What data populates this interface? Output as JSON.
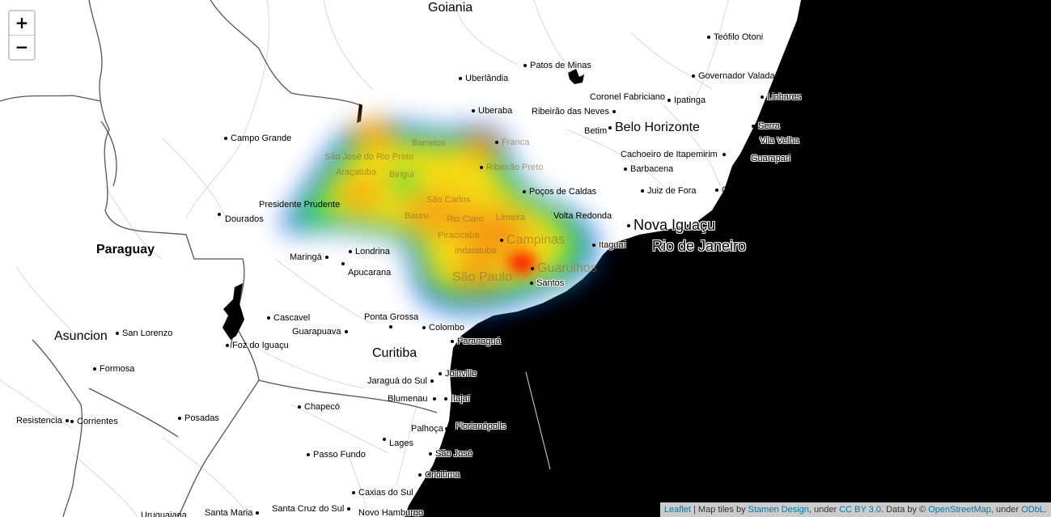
{
  "zoom": {
    "in_label": "+",
    "out_label": "−"
  },
  "attribution": {
    "leaflet": "Leaflet",
    "sep1": " | Map tiles by ",
    "stamen": "Stamen Design",
    "sep2": ", under ",
    "ccby": "CC BY 3.0",
    "sep3": ". Data by © ",
    "osm": "OpenStreetMap",
    "sep4": ", under ",
    "odbl": "ODbL",
    "end": "."
  },
  "countries": [
    "Paraguay"
  ],
  "cities": [
    "Goiania",
    "Teófilo Otoni",
    "Patos de Minas",
    "Uberlândia",
    "Governador Valadares",
    "Coronel Fabriciano",
    "Ipatinga",
    "Linhares",
    "Uberaba",
    "Ribeirão das Neves",
    "Betim",
    "Belo Horizonte",
    "Serra",
    "Vila Velha",
    "Guarapari",
    "Campo Grande",
    "Barretos",
    "Franca",
    "Cachoeiro de Itapemirim",
    "São José do Rio Preto",
    "Barbacena",
    "Araçatuba",
    "Birigui",
    "Ribeirão Preto",
    "Poços de Caldas",
    "Juiz de Fora",
    "Campos",
    "São Carlos",
    "Presidente Prudente",
    "Dourados",
    "Bauru",
    "Rio Claro",
    "Limeira",
    "Volta Redonda",
    "Nova Iguaçu",
    "Piracicaba",
    "Campinas",
    "Itaguaí",
    "Rio de Janeiro",
    "Paraguay",
    "Maringá",
    "Londrina",
    "Indaiatuba",
    "Guarulhos",
    "Apucarana",
    "São Paulo",
    "Santos",
    "Cascavel",
    "Ponta Grossa",
    "Asuncion",
    "San Lorenzo",
    "Guarapuava",
    "Colombo",
    "Paranaguá",
    "Foz do Iguaçu",
    "Curitiba",
    "Formosa",
    "Jaraguá do Sul",
    "Joinville",
    "Blumenau",
    "Itajaí",
    "Resistencia",
    "Corrientes",
    "Posadas",
    "Chapecó",
    "Palhoça",
    "Florianópolis",
    "Lages",
    "São José",
    "Passo Fundo",
    "Criciúma",
    "Caxias do Sul",
    "Uruguaiana",
    "Santa Maria",
    "Santa Cruz do Sul",
    "Novo Hamburgo"
  ],
  "colors": {
    "ocean": "#000000",
    "heat_low": "#0000ff",
    "heat_mid": "#00ff00",
    "heat_high": "#ffff00",
    "heat_peak": "#ff0000"
  },
  "heat_peak_city": "Guarulhos"
}
